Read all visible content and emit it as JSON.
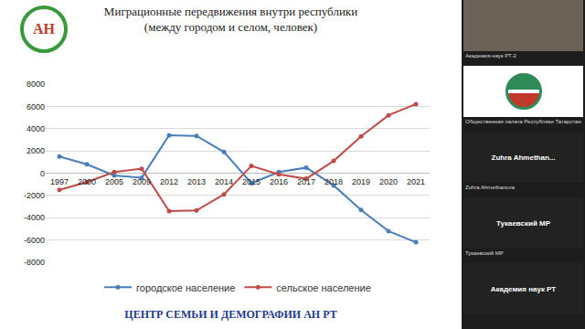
{
  "chart_data": {
    "type": "line",
    "title": "Миграционные передвижения внутри республики\n(между городом и селом, человек)",
    "categories": [
      "1997",
      "2000",
      "2005",
      "2009",
      "2012",
      "2013",
      "2014",
      "2015",
      "2016",
      "2017",
      "2018",
      "2019",
      "2020",
      "2021"
    ],
    "series": [
      {
        "name": "городское население",
        "color": "#4a7ebb",
        "marker": "circle",
        "line_style": "solid",
        "values": [
          1500,
          800,
          -200,
          -400,
          3400,
          3350,
          1900,
          -900,
          100,
          500,
          -1100,
          -3300,
          -5200,
          -6200
        ]
      },
      {
        "name": "сельское население",
        "color": "#be4b48",
        "marker": "circle",
        "line_style": "solid",
        "values": [
          -1500,
          -800,
          100,
          400,
          -3400,
          -3350,
          -1900,
          650,
          -100,
          -500,
          1100,
          3300,
          5200,
          6200
        ]
      }
    ],
    "ylim": [
      -8000,
      8000
    ],
    "yticks": [
      -8000,
      -6000,
      -4000,
      -2000,
      0,
      2000,
      4000,
      6000,
      8000
    ],
    "grid": true,
    "legend": "bottom"
  },
  "screen": {
    "logo_text": "АН",
    "footer": "ЦЕНТР СЕМЬИ И ДЕМОГРАФИИ АН РТ",
    "sidebar": [
      {
        "kind": "video",
        "caption": "Академия наук РТ-2"
      },
      {
        "kind": "emblem",
        "caption": "Общественная палата Республики Татарстан"
      },
      {
        "kind": "name",
        "name": "Zuhra Ahmethan...",
        "caption": "Zuhra Ahmethanova"
      },
      {
        "kind": "name",
        "name": "Тукаевский МР",
        "caption": "Тукаевский МР"
      },
      {
        "kind": "name",
        "name": "Академия наук РТ"
      }
    ]
  }
}
